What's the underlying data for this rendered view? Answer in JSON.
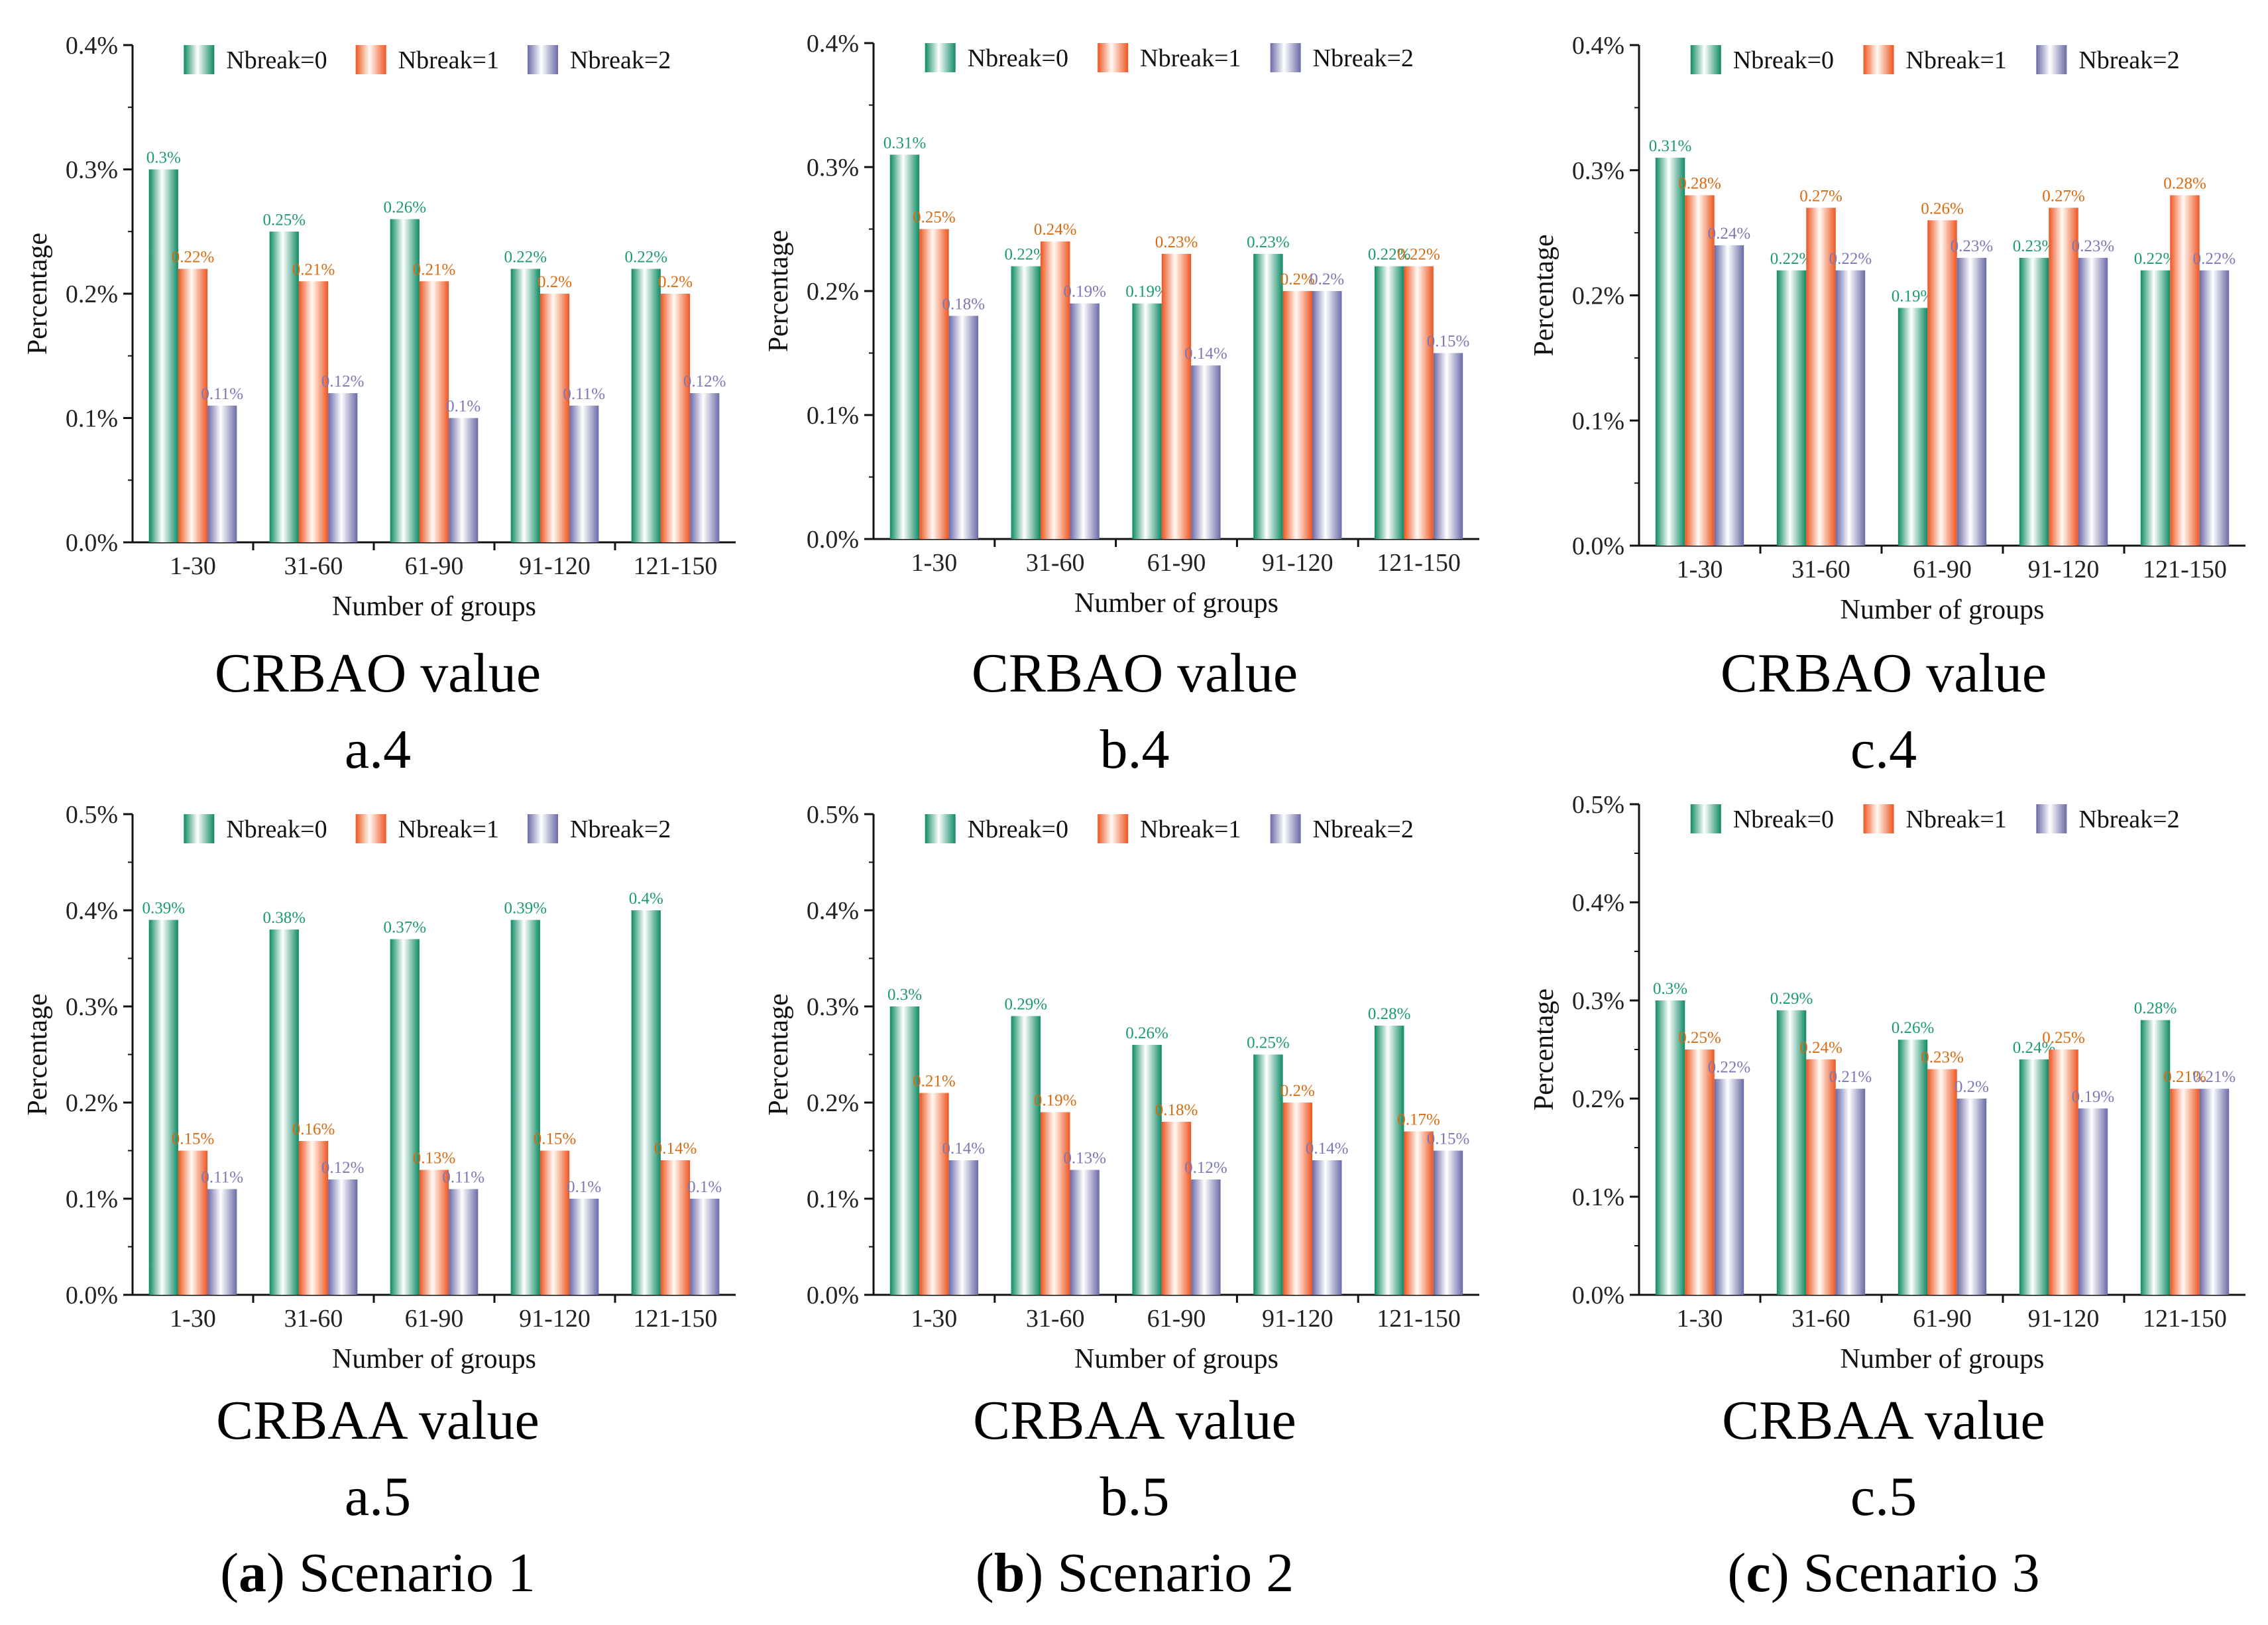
{
  "palette": {
    "green_edge": "#0e8a64",
    "green_center": "#ffffff",
    "orange_edge": "#ee5520",
    "orange_center": "#fffaf5",
    "purple_edge": "#6a6aa8",
    "purple_center": "#ffffff",
    "green_label": "#1c9a70",
    "orange_label": "#d86a10",
    "purple_label": "#7b78b8",
    "axis": "#111111"
  },
  "common": {
    "xlabel": "Number of groups",
    "ylabel": "Percentage",
    "legend": [
      "Nbreak=0",
      "Nbreak=1",
      "Nbreak=2"
    ]
  },
  "chart_data": [
    {
      "id": "a4",
      "type": "bar",
      "title": "CRBAO value",
      "label": "a.4",
      "xlabel": "Number of groups",
      "ylabel": "Percentage",
      "categories": [
        "1-30",
        "31-60",
        "61-90",
        "91-120",
        "121-150"
      ],
      "ylim": [
        0,
        0.4
      ],
      "yticks": [
        0.0,
        0.1,
        0.2,
        0.3,
        0.4
      ],
      "ytick_labels": [
        "0.0%",
        "0.1%",
        "0.2%",
        "0.3%",
        "0.4%"
      ],
      "series": [
        {
          "name": "Nbreak=0",
          "values": [
            0.3,
            0.25,
            0.26,
            0.22,
            0.22
          ],
          "labels": [
            "0.3%",
            "0.25%",
            "0.26%",
            "0.22%",
            "0.22%"
          ]
        },
        {
          "name": "Nbreak=1",
          "values": [
            0.22,
            0.21,
            0.21,
            0.2,
            0.2
          ],
          "labels": [
            "0.22%",
            "0.21%",
            "0.21%",
            "0.2%",
            "0.2%"
          ]
        },
        {
          "name": "Nbreak=2",
          "values": [
            0.11,
            0.12,
            0.1,
            0.11,
            0.12
          ],
          "labels": [
            "0.11%",
            "0.12%",
            "0.1%",
            "0.11%",
            "0.12%"
          ]
        }
      ]
    },
    {
      "id": "b4",
      "type": "bar",
      "title": "CRBAO value",
      "label": "b.4",
      "xlabel": "Number of groups",
      "ylabel": "Percentage",
      "categories": [
        "1-30",
        "31-60",
        "61-90",
        "91-120",
        "121-150"
      ],
      "ylim": [
        0,
        0.4
      ],
      "yticks": [
        0.0,
        0.1,
        0.2,
        0.3,
        0.4
      ],
      "ytick_labels": [
        "0.0%",
        "0.1%",
        "0.2%",
        "0.3%",
        "0.4%"
      ],
      "series": [
        {
          "name": "Nbreak=0",
          "values": [
            0.31,
            0.22,
            0.19,
            0.23,
            0.22
          ],
          "labels": [
            "0.31%",
            "0.22%",
            "0.19%",
            "0.23%",
            "0.22%"
          ]
        },
        {
          "name": "Nbreak=1",
          "values": [
            0.25,
            0.24,
            0.23,
            0.2,
            0.22
          ],
          "labels": [
            "0.25%",
            "0.24%",
            "0.23%",
            "0.2%",
            "0.22%"
          ]
        },
        {
          "name": "Nbreak=2",
          "values": [
            0.18,
            0.19,
            0.14,
            0.2,
            0.15
          ],
          "labels": [
            "0.18%",
            "0.19%",
            "0.14%",
            "0.2%",
            "0.15%"
          ]
        }
      ]
    },
    {
      "id": "c4",
      "type": "bar",
      "title": "CRBAO value",
      "label": "c.4",
      "xlabel": "Number of groups",
      "ylabel": "Percentage",
      "categories": [
        "1-30",
        "31-60",
        "61-90",
        "91-120",
        "121-150"
      ],
      "ylim": [
        0,
        0.4
      ],
      "yticks": [
        0.0,
        0.1,
        0.2,
        0.3,
        0.4
      ],
      "ytick_labels": [
        "0.0%",
        "0.1%",
        "0.2%",
        "0.3%",
        "0.4%"
      ],
      "series": [
        {
          "name": "Nbreak=0",
          "values": [
            0.31,
            0.22,
            0.19,
            0.23,
            0.22
          ],
          "labels": [
            "0.31%",
            "0.22%",
            "0.19%",
            "0.23%",
            "0.22%"
          ]
        },
        {
          "name": "Nbreak=1",
          "values": [
            0.28,
            0.27,
            0.26,
            0.27,
            0.28
          ],
          "labels": [
            "0.28%",
            "0.27%",
            "0.26%",
            "0.27%",
            "0.28%"
          ]
        },
        {
          "name": "Nbreak=2",
          "values": [
            0.24,
            0.22,
            0.23,
            0.23,
            0.22
          ],
          "labels": [
            "0.24%",
            "0.22%",
            "0.23%",
            "0.23%",
            "0.22%"
          ]
        }
      ]
    },
    {
      "id": "a5",
      "type": "bar",
      "title": "CRBAA value",
      "label": "a.5",
      "xlabel": "Number of groups",
      "ylabel": "Percentage",
      "categories": [
        "1-30",
        "31-60",
        "61-90",
        "91-120",
        "121-150"
      ],
      "ylim": [
        0,
        0.5
      ],
      "yticks": [
        0.0,
        0.1,
        0.2,
        0.3,
        0.4,
        0.5
      ],
      "ytick_labels": [
        "0.0%",
        "0.1%",
        "0.2%",
        "0.3%",
        "0.4%",
        "0.5%"
      ],
      "series": [
        {
          "name": "Nbreak=0",
          "values": [
            0.39,
            0.38,
            0.37,
            0.39,
            0.4
          ],
          "labels": [
            "0.39%",
            "0.38%",
            "0.37%",
            "0.39%",
            "0.4%"
          ]
        },
        {
          "name": "Nbreak=1",
          "values": [
            0.15,
            0.16,
            0.13,
            0.15,
            0.14
          ],
          "labels": [
            "0.15%",
            "0.16%",
            "0.13%",
            "0.15%",
            "0.14%"
          ]
        },
        {
          "name": "Nbreak=2",
          "values": [
            0.11,
            0.12,
            0.11,
            0.1,
            0.1
          ],
          "labels": [
            "0.11%",
            "0.12%",
            "0.11%",
            "0.1%",
            "0.1%"
          ]
        }
      ]
    },
    {
      "id": "b5",
      "type": "bar",
      "title": "CRBAA value",
      "label": "b.5",
      "xlabel": "Number of groups",
      "ylabel": "Percentage",
      "categories": [
        "1-30",
        "31-60",
        "61-90",
        "91-120",
        "121-150"
      ],
      "ylim": [
        0,
        0.5
      ],
      "yticks": [
        0.0,
        0.1,
        0.2,
        0.3,
        0.4,
        0.5
      ],
      "ytick_labels": [
        "0.0%",
        "0.1%",
        "0.2%",
        "0.3%",
        "0.4%",
        "0.5%"
      ],
      "series": [
        {
          "name": "Nbreak=0",
          "values": [
            0.3,
            0.29,
            0.26,
            0.25,
            0.28
          ],
          "labels": [
            "0.3%",
            "0.29%",
            "0.26%",
            "0.25%",
            "0.28%"
          ]
        },
        {
          "name": "Nbreak=1",
          "values": [
            0.21,
            0.19,
            0.18,
            0.2,
            0.17
          ],
          "labels": [
            "0.21%",
            "0.19%",
            "0.18%",
            "0.2%",
            "0.17%"
          ]
        },
        {
          "name": "Nbreak=2",
          "values": [
            0.14,
            0.13,
            0.12,
            0.14,
            0.15
          ],
          "labels": [
            "0.14%",
            "0.13%",
            "0.12%",
            "0.14%",
            "0.15%"
          ]
        }
      ]
    },
    {
      "id": "c5",
      "type": "bar",
      "title": "CRBAA value",
      "label": "c.5",
      "xlabel": "Number of groups",
      "ylabel": "Percentage",
      "categories": [
        "1-30",
        "31-60",
        "61-90",
        "91-120",
        "121-150"
      ],
      "ylim": [
        0,
        0.5
      ],
      "yticks": [
        0.0,
        0.1,
        0.2,
        0.3,
        0.4,
        0.5
      ],
      "ytick_labels": [
        "0.0%",
        "0.1%",
        "0.2%",
        "0.3%",
        "0.4%",
        "0.5%"
      ],
      "series": [
        {
          "name": "Nbreak=0",
          "values": [
            0.3,
            0.29,
            0.26,
            0.24,
            0.28
          ],
          "labels": [
            "0.3%",
            "0.29%",
            "0.26%",
            "0.24%",
            "0.28%"
          ]
        },
        {
          "name": "Nbreak=1",
          "values": [
            0.25,
            0.24,
            0.23,
            0.25,
            0.21
          ],
          "labels": [
            "0.25%",
            "0.24%",
            "0.23%",
            "0.25%",
            "0.21%"
          ]
        },
        {
          "name": "Nbreak=2",
          "values": [
            0.22,
            0.21,
            0.2,
            0.19,
            0.21
          ],
          "labels": [
            "0.22%",
            "0.21%",
            "0.2%",
            "0.19%",
            "0.21%"
          ]
        }
      ]
    }
  ],
  "scenarios": [
    {
      "letter": "a",
      "title": " Scenario 1"
    },
    {
      "letter": "b",
      "title": " Scenario 2"
    },
    {
      "letter": "c",
      "title": " Scenario 3"
    }
  ]
}
